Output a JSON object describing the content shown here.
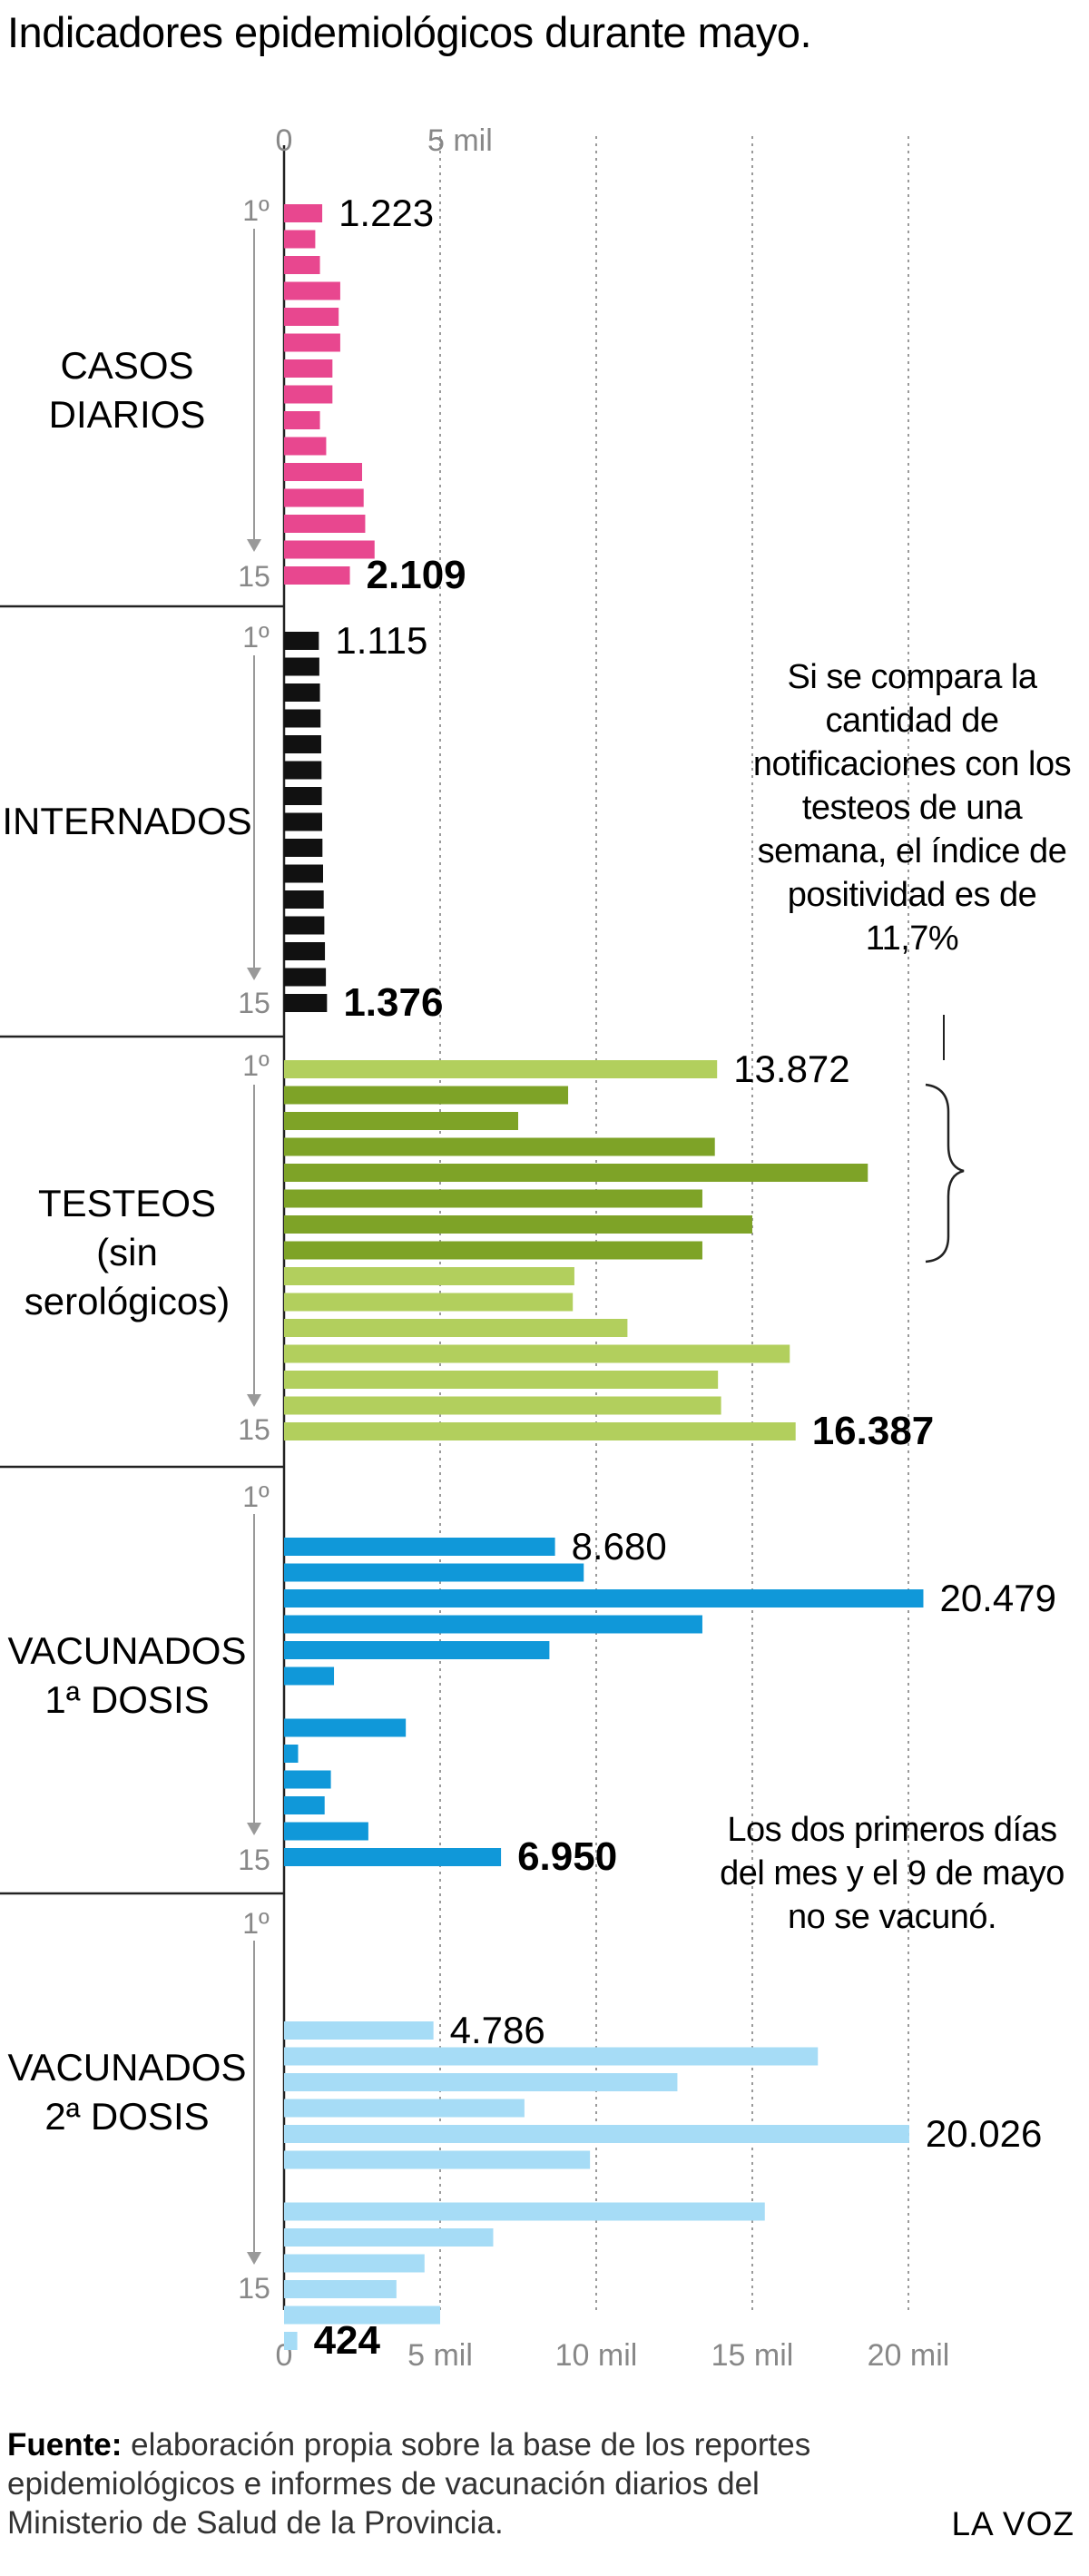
{
  "title": "Indicadores epidemiológicos durante mayo.",
  "notes": {
    "positividad": "Si se compara la cantidad de notificaciones con los testeos de una semana, el índice de positividad es de 11,7%",
    "vacunas": "Los dos primeros días del mes y el 9 de mayo no se vacunó."
  },
  "footer": {
    "source_label": "Fuente:",
    "source_text": " elaboración propia sobre la base de los reportes epidemiológicos e informes de vacunación diarios del Ministerio de Salud de la Provincia.",
    "brand": "LA VOZ"
  },
  "chart_data": {
    "type": "bar",
    "orientation": "horizontal",
    "axis": {
      "top_ticks": [
        {
          "value": 0,
          "label": "0"
        },
        {
          "value": 5000,
          "label": "5 mil"
        }
      ],
      "bottom_ticks": [
        {
          "value": 0,
          "label": "0"
        },
        {
          "value": 5000,
          "label": "5 mil"
        },
        {
          "value": 10000,
          "label": "10 mil"
        },
        {
          "value": 15000,
          "label": "15 mil"
        },
        {
          "value": 20000,
          "label": "20 mil"
        }
      ],
      "xlim": [
        0,
        20479
      ],
      "gridlines": true
    },
    "day_labels": {
      "first": "1º",
      "last": "15"
    },
    "panels": [
      {
        "label": [
          "CASOS",
          "DIARIOS"
        ],
        "color": "#e8478f",
        "values": [
          1223,
          1000,
          1150,
          1800,
          1750,
          1800,
          1550,
          1550,
          1150,
          1350,
          2500,
          2550,
          2600,
          2900,
          2109
        ],
        "annotations": [
          {
            "day": 1,
            "text": "1.223",
            "bold": false
          },
          {
            "day": 15,
            "text": "2.109",
            "bold": true
          }
        ]
      },
      {
        "label": [
          "INTERNADOS"
        ],
        "color": "#111111",
        "values": [
          1115,
          1130,
          1150,
          1170,
          1190,
          1200,
          1210,
          1220,
          1230,
          1250,
          1270,
          1290,
          1310,
          1340,
          1376
        ],
        "annotations": [
          {
            "day": 1,
            "text": "1.115",
            "bold": false
          },
          {
            "day": 15,
            "text": "1.376",
            "bold": true
          }
        ]
      },
      {
        "label": [
          "TESTEOS",
          "(sin",
          "serológicos)"
        ],
        "color": "#b2cf5d",
        "highlight_color": "#7ea327",
        "highlight_days": [
          2,
          3,
          4,
          5,
          6,
          7,
          8
        ],
        "values": [
          13872,
          9100,
          7500,
          13800,
          18700,
          13400,
          15000,
          13400,
          9300,
          9250,
          11000,
          16200,
          13900,
          14000,
          16387
        ],
        "annotations": [
          {
            "day": 1,
            "text": "13.872",
            "bold": false
          },
          {
            "day": 15,
            "text": "16.387",
            "bold": true
          }
        ]
      },
      {
        "label": [
          "VACUNADOS",
          "1ª DOSIS"
        ],
        "color": "#1098d9",
        "values": [
          0,
          0,
          8680,
          9600,
          20479,
          13400,
          8500,
          1600,
          0,
          3900,
          450,
          1500,
          1300,
          2700,
          6950
        ],
        "annotations": [
          {
            "day": 3,
            "text": "8.680",
            "bold": false
          },
          {
            "day": 5,
            "text": "20.479",
            "bold": false
          },
          {
            "day": 15,
            "text": "6.950",
            "bold": true
          }
        ]
      },
      {
        "label": [
          "VACUNADOS",
          "2ª DOSIS"
        ],
        "color": "#a6dcf6",
        "values": [
          0,
          0,
          4786,
          17100,
          12600,
          7700,
          20026,
          9800,
          0,
          15400,
          6700,
          4500,
          3600,
          5000,
          424
        ],
        "annotations": [
          {
            "day": 3,
            "text": "4.786",
            "bold": false
          },
          {
            "day": 7,
            "text": "20.026",
            "bold": false
          },
          {
            "day": 15,
            "text": "424",
            "bold": true
          }
        ]
      }
    ]
  }
}
